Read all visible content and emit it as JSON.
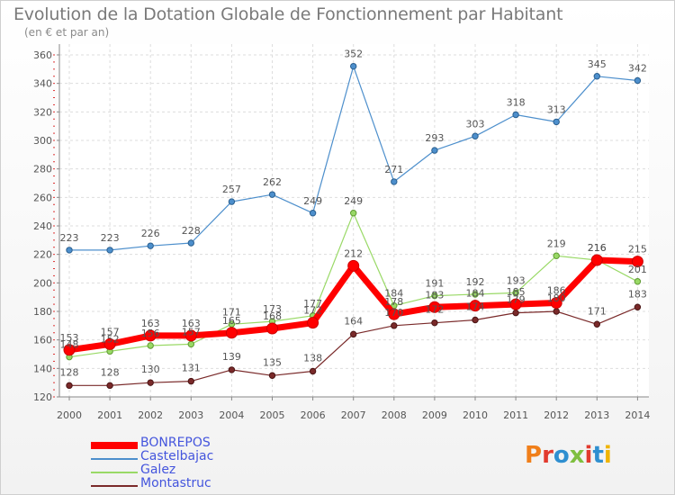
{
  "header": {
    "title": "Evolution de la Dotation Globale de Fonctionnement par Habitant",
    "subtitle": "(en € et par an)"
  },
  "logo": {
    "text": "Proxiti",
    "colors": [
      "#f07f1a",
      "#e23a2e",
      "#2f8fd0",
      "#7fbf3f",
      "#e23a2e",
      "#2f8fd0",
      "#f0b400"
    ]
  },
  "chart_data": {
    "type": "line",
    "title": "Evolution de la Dotation Globale de Fonctionnement par Habitant",
    "subtitle": "(en € et par an)",
    "xlabel": "",
    "ylabel": "",
    "x": [
      "2000",
      "2001",
      "2002",
      "2003",
      "2004",
      "2005",
      "2006",
      "2007",
      "2008",
      "2009",
      "2010",
      "2011",
      "2012",
      "2013",
      "2014"
    ],
    "ylim": [
      120,
      360
    ],
    "yticks": [
      120,
      140,
      160,
      180,
      200,
      220,
      240,
      260,
      280,
      300,
      320,
      340,
      360
    ],
    "grid": true,
    "legend_position": "bottom-left",
    "series": [
      {
        "name": "BONREPOS",
        "color": "#ff0000",
        "values": [
          153,
          157,
          163,
          163,
          165,
          168,
          172,
          212,
          178,
          183,
          184,
          185,
          186,
          216,
          215
        ]
      },
      {
        "name": "Castelbajac",
        "color": "#4d8fcc",
        "values": [
          223,
          223,
          226,
          228,
          257,
          262,
          249,
          352,
          271,
          293,
          303,
          318,
          313,
          345,
          342
        ]
      },
      {
        "name": "Galez",
        "color": "#99d966",
        "values": [
          148,
          152,
          156,
          157,
          171,
          173,
          177,
          249,
          184,
          191,
          192,
          193,
          219,
          216,
          201
        ]
      },
      {
        "name": "Montastruc",
        "color": "#7a2a2a",
        "values": [
          128,
          128,
          130,
          131,
          139,
          135,
          138,
          164,
          170,
          172,
          174,
          179,
          180,
          171,
          183
        ]
      }
    ]
  }
}
